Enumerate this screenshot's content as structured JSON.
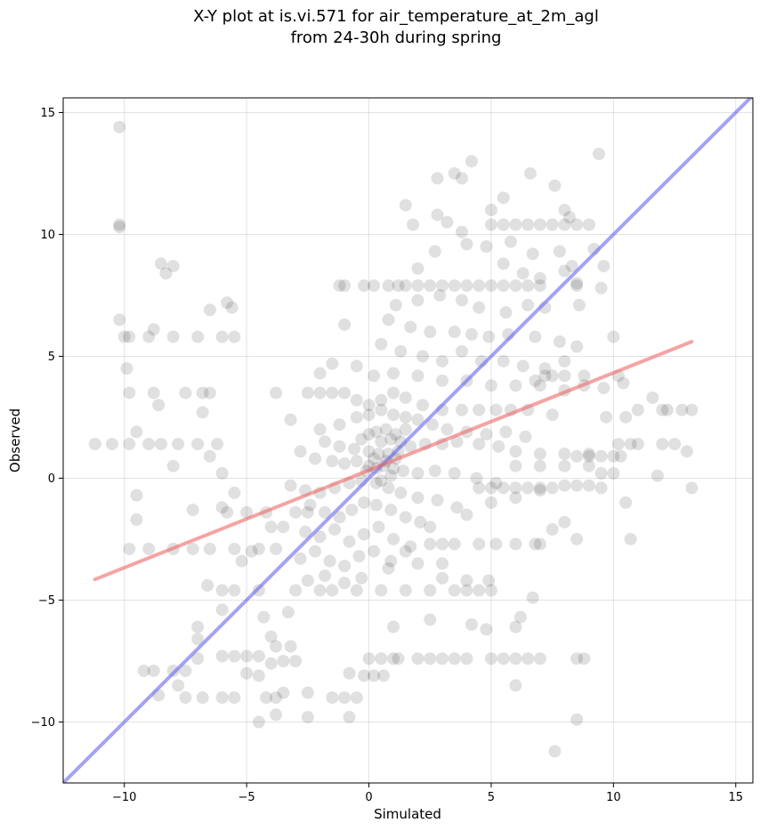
{
  "chart_data": {
    "type": "scatter",
    "title": [
      "X-Y plot at is.vi.571 for air_temperature_at_2m_agl",
      "from 24-30h during spring"
    ],
    "xlabel": "Simulated",
    "ylabel": "Observed",
    "xlim": [
      -12.5,
      15.7
    ],
    "ylim": [
      -12.5,
      15.6
    ],
    "xticks": [
      -10,
      -5,
      0,
      5,
      10,
      15
    ],
    "yticks": [
      -10,
      -5,
      0,
      5,
      10,
      15
    ],
    "grid": true,
    "point_color": "#000000",
    "point_alpha": 0.12,
    "one_to_one_color": "#6666ee",
    "fit_color": "#ee6666",
    "fit_line": {
      "x": [
        -11.2,
        13.2
      ],
      "y": [
        -4.15,
        5.6
      ]
    },
    "one_to_one_line": {
      "x": [
        -12.5,
        15.7
      ],
      "y": [
        -12.5,
        15.7
      ]
    },
    "points": [
      [
        -10.2,
        14.4
      ],
      [
        -10.2,
        10.4
      ],
      [
        -10.2,
        10.3
      ],
      [
        -8.5,
        8.8
      ],
      [
        -8.3,
        8.4
      ],
      [
        -8.0,
        8.7
      ],
      [
        -10.2,
        6.5
      ],
      [
        -10.0,
        5.8
      ],
      [
        -9.8,
        5.8
      ],
      [
        -9.0,
        5.8
      ],
      [
        -8.0,
        5.8
      ],
      [
        -7.0,
        5.8
      ],
      [
        -6.0,
        5.8
      ],
      [
        -5.5,
        5.8
      ],
      [
        -5.8,
        7.2
      ],
      [
        -5.6,
        7.0
      ],
      [
        -6.5,
        6.9
      ],
      [
        -8.8,
        6.1
      ],
      [
        -9.9,
        4.5
      ],
      [
        -9.8,
        3.5
      ],
      [
        -8.8,
        3.5
      ],
      [
        -7.5,
        3.5
      ],
      [
        -6.5,
        3.5
      ],
      [
        -6.8,
        3.5
      ],
      [
        -6.8,
        2.7
      ],
      [
        -8.6,
        3.0
      ],
      [
        -9.5,
        1.9
      ],
      [
        -11.2,
        1.4
      ],
      [
        -10.5,
        1.4
      ],
      [
        -9.8,
        1.4
      ],
      [
        -9.0,
        1.4
      ],
      [
        -8.5,
        1.4
      ],
      [
        -7.8,
        1.4
      ],
      [
        -7.0,
        1.4
      ],
      [
        -6.2,
        1.4
      ],
      [
        -6.5,
        0.9
      ],
      [
        -8.0,
        0.5
      ],
      [
        -6.0,
        0.2
      ],
      [
        -9.5,
        -0.7
      ],
      [
        -5.5,
        -0.6
      ],
      [
        -9.5,
        -1.7
      ],
      [
        -7.2,
        -1.3
      ],
      [
        -6.0,
        -1.2
      ],
      [
        -5.8,
        -1.4
      ],
      [
        -5.0,
        -1.4
      ],
      [
        -4.2,
        -1.4
      ],
      [
        -3.0,
        -1.4
      ],
      [
        -2.5,
        -1.4
      ],
      [
        -4.0,
        -2.0
      ],
      [
        -3.5,
        -2.0
      ],
      [
        -9.8,
        -2.9
      ],
      [
        -9.0,
        -2.9
      ],
      [
        -8.0,
        -2.9
      ],
      [
        -7.2,
        -2.9
      ],
      [
        -6.5,
        -2.9
      ],
      [
        -5.5,
        -2.9
      ],
      [
        -4.5,
        -2.9
      ],
      [
        -3.8,
        -2.9
      ],
      [
        -5.2,
        -3.4
      ],
      [
        -4.8,
        -3.0
      ],
      [
        -6.6,
        -4.4
      ],
      [
        -6.0,
        -4.6
      ],
      [
        -5.5,
        -4.6
      ],
      [
        -4.5,
        -4.6
      ],
      [
        -3.0,
        -4.6
      ],
      [
        -2.0,
        -4.6
      ],
      [
        -1.5,
        -4.6
      ],
      [
        -6.0,
        -5.4
      ],
      [
        -4.3,
        -5.7
      ],
      [
        -3.3,
        -5.5
      ],
      [
        -7.0,
        -6.1
      ],
      [
        -7.0,
        -6.6
      ],
      [
        -4.0,
        -6.5
      ],
      [
        -3.8,
        -6.9
      ],
      [
        -3.2,
        -6.9
      ],
      [
        -9.2,
        -7.9
      ],
      [
        -8.8,
        -7.9
      ],
      [
        -8.0,
        -7.9
      ],
      [
        -7.5,
        -7.9
      ],
      [
        -7.0,
        -7.4
      ],
      [
        -6.0,
        -7.3
      ],
      [
        -5.5,
        -7.3
      ],
      [
        -5.0,
        -7.3
      ],
      [
        -4.5,
        -7.3
      ],
      [
        -4.0,
        -7.6
      ],
      [
        -3.5,
        -7.5
      ],
      [
        -3.0,
        -7.5
      ],
      [
        -5.0,
        -8.0
      ],
      [
        -4.5,
        -8.1
      ],
      [
        -3.5,
        -8.8
      ],
      [
        -2.5,
        -8.8
      ],
      [
        -7.8,
        -8.5
      ],
      [
        -8.6,
        -8.9
      ],
      [
        -7.5,
        -9.0
      ],
      [
        -6.8,
        -9.0
      ],
      [
        -6.0,
        -9.0
      ],
      [
        -5.5,
        -9.0
      ],
      [
        -4.2,
        -9.0
      ],
      [
        -3.8,
        -9.0
      ],
      [
        -2.5,
        -9.8
      ],
      [
        -4.5,
        -10.0
      ],
      [
        -3.8,
        -9.7
      ],
      [
        -1.5,
        -9.0
      ],
      [
        -1.0,
        -9.0
      ],
      [
        -0.5,
        -9.0
      ],
      [
        -0.8,
        -9.8
      ],
      [
        -0.8,
        -8.0
      ],
      [
        -0.2,
        -8.1
      ],
      [
        0.2,
        -8.1
      ],
      [
        0.6,
        -8.1
      ],
      [
        0.0,
        -7.4
      ],
      [
        0.5,
        -7.4
      ],
      [
        1.0,
        -7.4
      ],
      [
        1.2,
        -7.4
      ],
      [
        2.0,
        -7.4
      ],
      [
        2.5,
        -7.4
      ],
      [
        3.0,
        -7.4
      ],
      [
        3.5,
        -7.4
      ],
      [
        4.0,
        -7.4
      ],
      [
        5.0,
        -7.4
      ],
      [
        5.5,
        -7.4
      ],
      [
        6.0,
        -7.4
      ],
      [
        6.5,
        -7.4
      ],
      [
        7.0,
        -7.4
      ],
      [
        8.8,
        -7.4
      ],
      [
        8.5,
        -7.4
      ],
      [
        6.0,
        -8.5
      ],
      [
        7.6,
        -11.2
      ],
      [
        8.5,
        -9.9
      ],
      [
        1.0,
        -6.1
      ],
      [
        2.5,
        -5.8
      ],
      [
        4.2,
        -6.0
      ],
      [
        4.8,
        -6.2
      ],
      [
        6.0,
        -6.1
      ],
      [
        6.2,
        -5.7
      ],
      [
        -0.5,
        -4.6
      ],
      [
        0.5,
        -4.6
      ],
      [
        1.5,
        -4.6
      ],
      [
        2.5,
        -4.6
      ],
      [
        3.5,
        -4.6
      ],
      [
        4.0,
        -4.6
      ],
      [
        4.5,
        -4.6
      ],
      [
        5.0,
        -4.6
      ],
      [
        6.7,
        -4.9
      ],
      [
        3.0,
        -4.1
      ],
      [
        4.0,
        -4.2
      ],
      [
        4.9,
        -4.2
      ],
      [
        0.8,
        -3.7
      ],
      [
        2.0,
        -3.5
      ],
      [
        3.0,
        -3.5
      ],
      [
        1.5,
        -3.0
      ],
      [
        2.5,
        -2.7
      ],
      [
        3.0,
        -2.7
      ],
      [
        3.5,
        -2.7
      ],
      [
        4.5,
        -2.7
      ],
      [
        5.2,
        -2.7
      ],
      [
        6.0,
        -2.7
      ],
      [
        6.8,
        -2.7
      ],
      [
        7.0,
        -2.7
      ],
      [
        8.5,
        -2.5
      ],
      [
        7.5,
        -2.1
      ],
      [
        10.7,
        -2.5
      ],
      [
        10.5,
        -1.0
      ],
      [
        8.0,
        -1.8
      ],
      [
        2.5,
        -2.0
      ],
      [
        4.0,
        -1.5
      ],
      [
        5.0,
        -1.0
      ],
      [
        6.0,
        -0.8
      ],
      [
        7.0,
        -0.5
      ],
      [
        4.5,
        -0.4
      ],
      [
        5.0,
        -0.4
      ],
      [
        5.5,
        -0.4
      ],
      [
        6.0,
        -0.4
      ],
      [
        6.5,
        -0.4
      ],
      [
        7.0,
        -0.4
      ],
      [
        7.5,
        -0.4
      ],
      [
        8.0,
        -0.3
      ],
      [
        8.5,
        -0.3
      ],
      [
        9.0,
        -0.3
      ],
      [
        9.5,
        -0.4
      ],
      [
        13.2,
        -0.4
      ],
      [
        9.5,
        0.2
      ],
      [
        10.0,
        0.2
      ],
      [
        11.8,
        0.1
      ],
      [
        6.0,
        0.5
      ],
      [
        7.0,
        0.5
      ],
      [
        8.0,
        0.5
      ],
      [
        9.0,
        0.5
      ],
      [
        10.0,
        0.9
      ],
      [
        10.3,
        0.9
      ],
      [
        8.5,
        0.9
      ],
      [
        9.0,
        0.9
      ],
      [
        9.5,
        0.9
      ],
      [
        11.0,
        1.4
      ],
      [
        12.0,
        1.4
      ],
      [
        12.5,
        1.4
      ],
      [
        13.0,
        1.1
      ],
      [
        10.2,
        1.4
      ],
      [
        10.7,
        1.4
      ],
      [
        12.0,
        2.8
      ],
      [
        12.2,
        2.8
      ],
      [
        12.8,
        2.8
      ],
      [
        13.2,
        2.8
      ],
      [
        11.0,
        2.8
      ],
      [
        11.6,
        3.3
      ],
      [
        9.7,
        2.5
      ],
      [
        10.5,
        2.5
      ],
      [
        10.4,
        3.9
      ],
      [
        9.6,
        3.7
      ],
      [
        10.2,
        4.2
      ],
      [
        8.8,
        4.2
      ],
      [
        8.0,
        4.2
      ],
      [
        7.5,
        4.2
      ],
      [
        7.2,
        4.2
      ],
      [
        6.8,
        4.0
      ],
      [
        9.4,
        13.3
      ],
      [
        7.6,
        12.0
      ],
      [
        6.6,
        12.5
      ],
      [
        5.0,
        11.0
      ],
      [
        5.5,
        11.5
      ],
      [
        8.0,
        11.0
      ],
      [
        8.2,
        10.7
      ],
      [
        4.2,
        13.0
      ],
      [
        3.5,
        12.5
      ],
      [
        3.8,
        12.3
      ],
      [
        2.8,
        12.3
      ],
      [
        1.5,
        11.2
      ],
      [
        2.8,
        10.8
      ],
      [
        3.2,
        10.5
      ],
      [
        1.8,
        10.4
      ],
      [
        3.8,
        10.1
      ],
      [
        5.0,
        10.4
      ],
      [
        5.5,
        10.4
      ],
      [
        6.0,
        10.4
      ],
      [
        6.5,
        10.4
      ],
      [
        7.0,
        10.4
      ],
      [
        7.5,
        10.4
      ],
      [
        8.0,
        10.4
      ],
      [
        8.5,
        10.4
      ],
      [
        9.0,
        10.4
      ],
      [
        9.6,
        8.7
      ],
      [
        2.7,
        9.3
      ],
      [
        4.0,
        9.6
      ],
      [
        4.8,
        9.5
      ],
      [
        5.8,
        9.7
      ],
      [
        6.7,
        9.2
      ],
      [
        7.8,
        9.3
      ],
      [
        8.3,
        8.7
      ],
      [
        9.2,
        9.4
      ],
      [
        2.0,
        8.6
      ],
      [
        5.5,
        8.8
      ],
      [
        6.3,
        8.4
      ],
      [
        7.0,
        8.2
      ],
      [
        8.0,
        8.5
      ],
      [
        8.5,
        8.0
      ],
      [
        9.5,
        7.8
      ],
      [
        -1.0,
        7.9
      ],
      [
        -0.2,
        7.9
      ],
      [
        0.2,
        7.9
      ],
      [
        0.8,
        7.9
      ],
      [
        1.2,
        7.9
      ],
      [
        1.5,
        7.9
      ],
      [
        2.0,
        7.9
      ],
      [
        2.5,
        7.9
      ],
      [
        3.0,
        7.9
      ],
      [
        3.5,
        7.9
      ],
      [
        4.0,
        7.9
      ],
      [
        4.5,
        7.9
      ],
      [
        5.0,
        7.9
      ],
      [
        5.5,
        7.9
      ],
      [
        6.0,
        7.9
      ],
      [
        6.5,
        7.9
      ],
      [
        7.0,
        7.9
      ],
      [
        8.5,
        7.9
      ],
      [
        -1.2,
        7.9
      ],
      [
        1.1,
        7.1
      ],
      [
        2.0,
        7.3
      ],
      [
        2.9,
        7.5
      ],
      [
        3.8,
        7.3
      ],
      [
        4.5,
        7.0
      ],
      [
        5.6,
        6.8
      ],
      [
        6.5,
        7.1
      ],
      [
        7.2,
        7.0
      ],
      [
        8.6,
        7.1
      ],
      [
        10.0,
        5.8
      ],
      [
        0.8,
        6.5
      ],
      [
        1.7,
        6.2
      ],
      [
        2.5,
        6.0
      ],
      [
        3.5,
        6.0
      ],
      [
        4.2,
        5.9
      ],
      [
        4.9,
        5.8
      ],
      [
        5.7,
        5.9
      ],
      [
        6.8,
        5.8
      ],
      [
        7.8,
        5.6
      ],
      [
        8.5,
        5.4
      ],
      [
        0.5,
        5.5
      ],
      [
        1.3,
        5.2
      ],
      [
        2.2,
        5.0
      ],
      [
        3.0,
        4.8
      ],
      [
        3.8,
        5.2
      ],
      [
        4.6,
        4.8
      ],
      [
        5.5,
        4.8
      ],
      [
        6.3,
        4.6
      ],
      [
        7.2,
        4.5
      ],
      [
        8.0,
        4.8
      ],
      [
        -1.0,
        6.3
      ],
      [
        -2.0,
        4.3
      ],
      [
        -1.5,
        4.7
      ],
      [
        -0.5,
        4.6
      ],
      [
        0.2,
        4.2
      ],
      [
        1.0,
        4.3
      ],
      [
        2.0,
        4.2
      ],
      [
        3.0,
        4.0
      ],
      [
        4.0,
        4.0
      ],
      [
        5.0,
        3.8
      ],
      [
        6.0,
        3.8
      ],
      [
        7.0,
        3.8
      ],
      [
        8.0,
        3.6
      ],
      [
        8.8,
        3.8
      ],
      [
        -2.5,
        3.5
      ],
      [
        -2.0,
        3.5
      ],
      [
        -1.5,
        3.5
      ],
      [
        -1.0,
        3.5
      ],
      [
        -0.5,
        3.2
      ],
      [
        0.0,
        3.0
      ],
      [
        0.5,
        3.2
      ],
      [
        1.0,
        3.5
      ],
      [
        1.5,
        3.3
      ],
      [
        2.2,
        3.0
      ],
      [
        3.0,
        2.8
      ],
      [
        3.8,
        2.8
      ],
      [
        4.5,
        2.8
      ],
      [
        5.2,
        2.8
      ],
      [
        5.8,
        2.8
      ],
      [
        6.5,
        2.8
      ],
      [
        7.5,
        2.6
      ],
      [
        -3.8,
        3.5
      ],
      [
        -3.2,
        2.4
      ],
      [
        -2.0,
        2.0
      ],
      [
        -1.2,
        2.2
      ],
      [
        -0.5,
        2.5
      ],
      [
        0.0,
        2.6
      ],
      [
        0.5,
        2.8
      ],
      [
        1.0,
        2.6
      ],
      [
        1.5,
        2.5
      ],
      [
        2.0,
        2.4
      ],
      [
        2.6,
        2.2
      ],
      [
        3.2,
        2.0
      ],
      [
        4.0,
        1.9
      ],
      [
        4.8,
        1.8
      ],
      [
        5.6,
        1.9
      ],
      [
        6.4,
        1.7
      ],
      [
        -1.8,
        1.5
      ],
      [
        -1.2,
        1.3
      ],
      [
        -0.6,
        1.2
      ],
      [
        0.0,
        1.1
      ],
      [
        0.4,
        1.0
      ],
      [
        0.8,
        1.0
      ],
      [
        1.2,
        1.1
      ],
      [
        1.7,
        1.3
      ],
      [
        2.3,
        1.4
      ],
      [
        3.0,
        1.4
      ],
      [
        3.6,
        1.5
      ],
      [
        4.5,
        1.4
      ],
      [
        5.3,
        1.3
      ],
      [
        6.0,
        1.1
      ],
      [
        7.0,
        1.0
      ],
      [
        8.0,
        1.0
      ],
      [
        9.0,
        1.0
      ],
      [
        -2.8,
        1.1
      ],
      [
        -2.2,
        0.8
      ],
      [
        -1.5,
        0.7
      ],
      [
        -1.0,
        0.6
      ],
      [
        -0.5,
        0.7
      ],
      [
        0.0,
        0.5
      ],
      [
        0.3,
        0.4
      ],
      [
        0.6,
        0.5
      ],
      [
        1.0,
        0.4
      ],
      [
        1.4,
        0.3
      ],
      [
        2.0,
        0.2
      ],
      [
        2.7,
        0.3
      ],
      [
        3.5,
        0.2
      ],
      [
        4.4,
        0.0
      ],
      [
        5.2,
        -0.2
      ],
      [
        -3.2,
        -0.3
      ],
      [
        -2.6,
        -0.5
      ],
      [
        -2.0,
        -0.6
      ],
      [
        -1.4,
        -0.4
      ],
      [
        -0.8,
        -0.2
      ],
      [
        -0.3,
        -0.1
      ],
      [
        0.3,
        -0.2
      ],
      [
        0.8,
        -0.4
      ],
      [
        1.3,
        -0.6
      ],
      [
        2.0,
        -0.8
      ],
      [
        2.8,
        -0.9
      ],
      [
        3.6,
        -1.2
      ],
      [
        -2.4,
        -1.1
      ],
      [
        -1.8,
        -1.4
      ],
      [
        -1.2,
        -1.6
      ],
      [
        -0.7,
        -1.3
      ],
      [
        -0.2,
        -1.0
      ],
      [
        0.3,
        -1.1
      ],
      [
        0.9,
        -1.3
      ],
      [
        1.5,
        -1.6
      ],
      [
        2.1,
        -1.8
      ],
      [
        -2.6,
        -2.2
      ],
      [
        -2.0,
        -2.4
      ],
      [
        -1.4,
        -2.1
      ],
      [
        -0.8,
        -2.6
      ],
      [
        -0.2,
        -2.3
      ],
      [
        0.4,
        -2.0
      ],
      [
        1.0,
        -2.5
      ],
      [
        1.7,
        -2.8
      ],
      [
        -2.8,
        -3.3
      ],
      [
        -2.2,
        -3.0
      ],
      [
        -1.6,
        -3.4
      ],
      [
        -1.0,
        -3.6
      ],
      [
        -0.4,
        -3.2
      ],
      [
        0.2,
        -3.0
      ],
      [
        0.9,
        -3.4
      ],
      [
        -2.5,
        -4.2
      ],
      [
        -1.8,
        -4.0
      ],
      [
        -1.0,
        -4.3
      ],
      [
        -0.3,
        -4.1
      ],
      [
        0.0,
        1.8
      ],
      [
        0.3,
        1.9
      ],
      [
        0.7,
        2.0
      ],
      [
        1.1,
        1.8
      ],
      [
        1.5,
        2.0
      ],
      [
        -0.3,
        1.6
      ],
      [
        0.5,
        1.5
      ],
      [
        0.9,
        1.6
      ],
      [
        1.3,
        1.5
      ],
      [
        0.2,
        0.8
      ],
      [
        0.7,
        0.7
      ],
      [
        1.1,
        0.8
      ],
      [
        -0.1,
        0.3
      ],
      [
        0.9,
        0.1
      ],
      [
        0.5,
        -0.1
      ]
    ]
  }
}
